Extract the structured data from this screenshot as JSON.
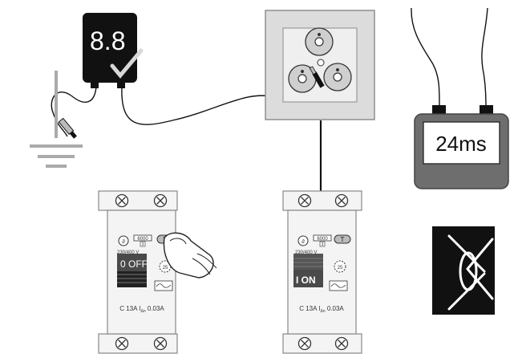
{
  "tester": {
    "display": "8.8",
    "check_icon": "checkmark-icon"
  },
  "timer": {
    "reading": "24ms"
  },
  "breaker_left": {
    "state_label": "0 OFF",
    "rating_label": "6000",
    "class_label": "3",
    "voltage_label": "230/400 V",
    "test_button": "T",
    "temp_label": "25",
    "bottom_label": "C 13A I",
    "bottom_sub": "Δn",
    "bottom_suffix": " 0.03A",
    "finger_icon": "finger-press-icon"
  },
  "breaker_right": {
    "state_label": "I  ON",
    "rating_label": "6000",
    "class_label": "3",
    "voltage_label": "230/400 V",
    "test_button": "T",
    "temp_label": "25",
    "bottom_label": "C 13A I",
    "bottom_sub": "Δn",
    "bottom_suffix": " 0.03A"
  },
  "icons": {
    "ground": "ground-icon",
    "socket": "socket-icon",
    "visual_inspection": "eye-icon",
    "screw": "screw-icon"
  },
  "colors": {
    "device_black": "#111111",
    "panel_gray": "#dcdcdc",
    "timer_gray": "#6e6e6e",
    "breaker_white": "#f4f4f4"
  }
}
